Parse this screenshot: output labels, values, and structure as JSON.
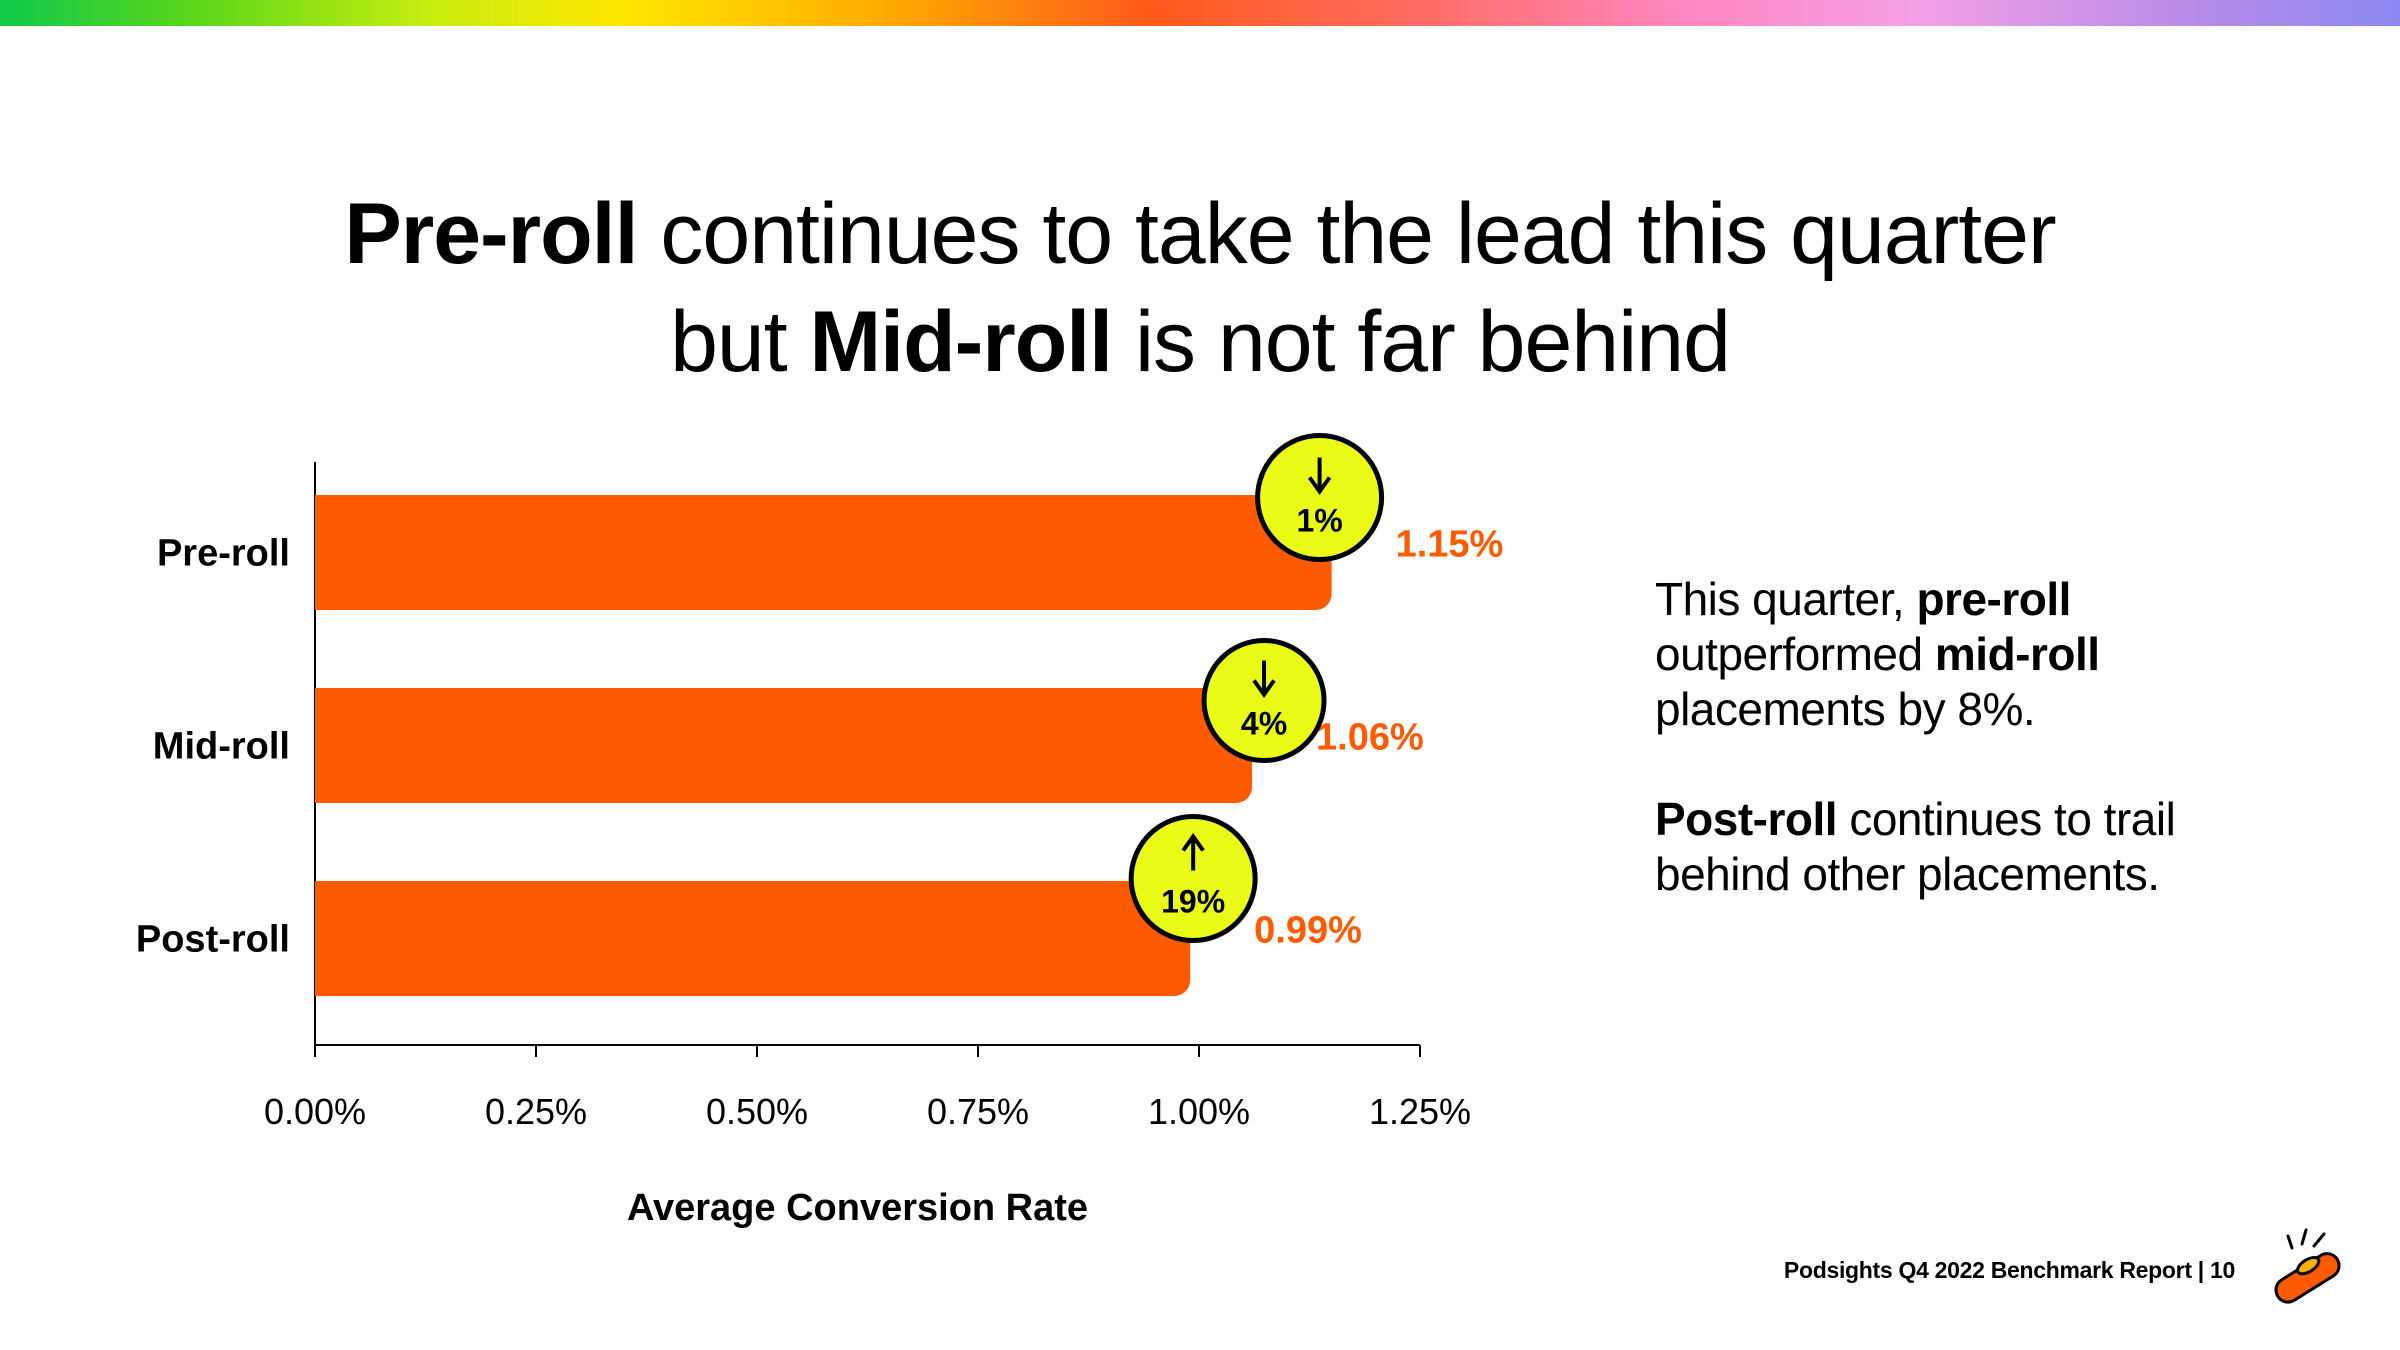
{
  "colors": {
    "bar": "#ff5a00",
    "badge_fill": "#e9fb16",
    "value_text": "#ff5a00",
    "text": "#000000"
  },
  "title": {
    "line1_bold": "Pre-roll",
    "line1_rest": " continues to take the lead this quarter",
    "line2_pre": "but ",
    "line2_bold": "Mid-roll",
    "line2_rest": " is not far behind"
  },
  "chart_data": {
    "type": "bar",
    "orientation": "horizontal",
    "categories": [
      "Pre-roll",
      "Mid-roll",
      "Post-roll"
    ],
    "values": [
      1.15,
      1.06,
      0.99
    ],
    "value_labels": [
      "1.15%",
      "1.06%",
      "0.99%"
    ],
    "change_badges": [
      {
        "direction": "down",
        "label": "1%"
      },
      {
        "direction": "down",
        "label": "4%"
      },
      {
        "direction": "up",
        "label": "19%"
      }
    ],
    "xlim": [
      0,
      1.25
    ],
    "xticks": [
      0,
      0.25,
      0.5,
      0.75,
      1.0,
      1.25
    ],
    "xtick_labels": [
      "0.00%",
      "0.25%",
      "0.50%",
      "0.75%",
      "1.00%",
      "1.25%"
    ],
    "xlabel": "Average Conversion Rate",
    "ylabel": "",
    "grid": false
  },
  "note": {
    "p1_a": "This quarter, ",
    "p1_b": "pre-roll",
    "p1_c": " outperformed ",
    "p1_d": "mid-roll",
    "p1_e": " placements by 8%.",
    "p2_a": "Post-roll",
    "p2_b": " continues to trail behind other placements."
  },
  "footer": {
    "text": "Podsights Q4 2022 Benchmark Report | 10"
  },
  "logo": {
    "icon": "podsights-logo-icon"
  }
}
